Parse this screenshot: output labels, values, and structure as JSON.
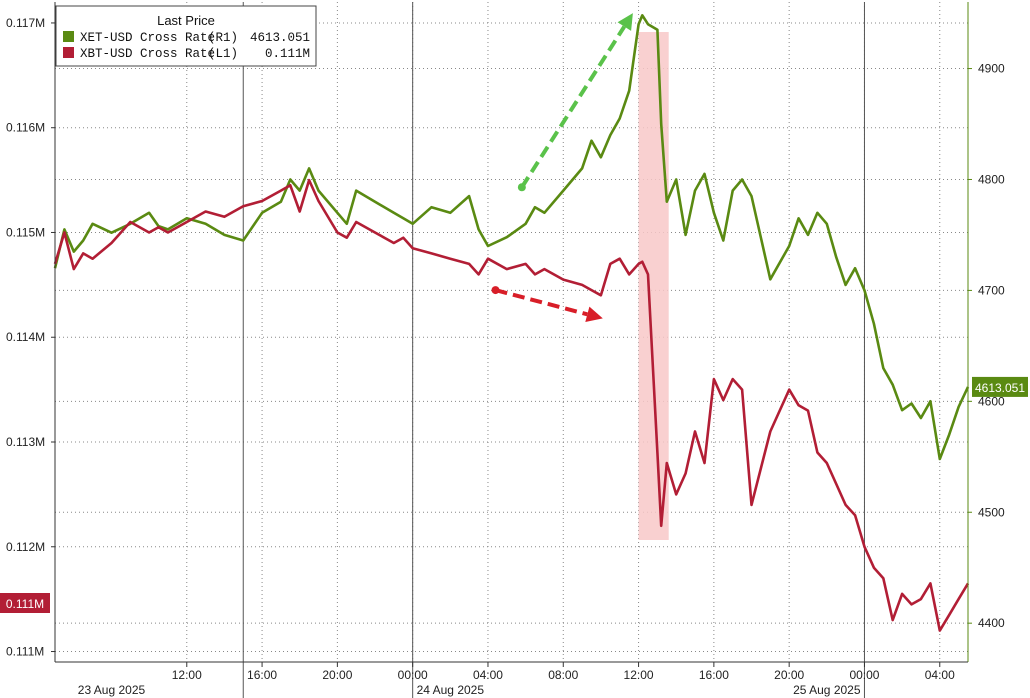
{
  "chart_data": {
    "type": "line",
    "title": "",
    "legend": {
      "title": "Last Price",
      "placement": "top-left",
      "entries": [
        {
          "name": "XET-USD Cross Rate",
          "axis_tag": "(R1)",
          "last": "4613.051",
          "color": "#5a8a12"
        },
        {
          "name": "XBT-USD Cross Rate",
          "axis_tag": "(L1)",
          "last": "0.111M",
          "color": "#b21e35"
        }
      ]
    },
    "x_axis": {
      "ticks": [
        "12:00",
        "16:00",
        "20:00",
        "00:00",
        "04:00",
        "08:00",
        "12:00",
        "16:00",
        "20:00",
        "00:00",
        "04:00"
      ],
      "tick_hours": [
        12,
        16,
        20,
        24,
        28,
        32,
        36,
        40,
        44,
        48,
        52
      ],
      "date_labels": [
        {
          "text": "23 Aug 2025",
          "hour": 8
        },
        {
          "text": "24 Aug 2025",
          "hour": 26
        },
        {
          "text": "25 Aug 2025",
          "hour": 46
        }
      ],
      "day_boundaries_hours": [
        15,
        24,
        48
      ],
      "range_hours": [
        5,
        53.5
      ]
    },
    "left_axis": {
      "ticks": [
        "0.117M",
        "0.116M",
        "0.115M",
        "0.114M",
        "0.113M",
        "0.112M",
        "0.111M"
      ],
      "tick_values": [
        117000,
        116000,
        115000,
        114000,
        113000,
        112000,
        111000
      ],
      "range": [
        110900,
        117200
      ],
      "badge": "0.111M"
    },
    "right_axis": {
      "ticks": [
        "4900",
        "4800",
        "4700",
        "4600",
        "4500",
        "4400"
      ],
      "tick_values": [
        4900,
        4800,
        4700,
        4600,
        4500,
        4400
      ],
      "range": [
        4365,
        4960
      ],
      "badge": "4613.051"
    },
    "grid": true,
    "series": [
      {
        "name": "XET-USD Cross Rate",
        "axis": "right",
        "color": "#5a8a12",
        "x_hours": [
          5,
          5.5,
          6,
          6.5,
          7,
          8,
          9,
          10,
          10.5,
          11,
          12,
          13,
          14,
          15,
          16,
          17,
          17.5,
          18,
          18.5,
          19,
          20,
          20.5,
          21,
          22,
          23,
          23.5,
          24,
          25,
          26,
          27,
          27.5,
          28,
          29,
          30,
          30.5,
          31,
          32,
          33,
          33.5,
          34,
          34.5,
          35,
          35.5,
          36,
          36.2,
          36.5,
          37,
          37.2,
          37.5,
          38,
          38.5,
          39,
          39.5,
          40,
          40.5,
          41,
          41.5,
          42,
          43,
          44,
          44.5,
          45,
          45.5,
          46,
          46.5,
          47,
          47.5,
          48,
          48.5,
          49,
          49.5,
          50,
          50.5,
          51,
          51.5,
          52,
          52.5,
          53,
          53.5
        ],
        "values": [
          4720,
          4755,
          4735,
          4745,
          4760,
          4752,
          4760,
          4770,
          4758,
          4755,
          4765,
          4760,
          4750,
          4745,
          4770,
          4780,
          4800,
          4790,
          4810,
          4790,
          4770,
          4760,
          4790,
          4780,
          4770,
          4765,
          4760,
          4775,
          4770,
          4785,
          4755,
          4740,
          4748,
          4760,
          4775,
          4770,
          4790,
          4810,
          4835,
          4820,
          4840,
          4855,
          4880,
          4940,
          4948,
          4940,
          4935,
          4850,
          4780,
          4800,
          4750,
          4790,
          4805,
          4770,
          4745,
          4790,
          4800,
          4785,
          4710,
          4740,
          4765,
          4750,
          4770,
          4760,
          4730,
          4705,
          4720,
          4700,
          4670,
          4630,
          4615,
          4592,
          4598,
          4585,
          4600,
          4548,
          4570,
          4595,
          4613
        ]
      },
      {
        "name": "XBT-USD Cross Rate",
        "axis": "left",
        "color": "#b21e35",
        "x_hours": [
          5,
          5.5,
          6,
          6.5,
          7,
          8,
          9,
          10,
          10.5,
          11,
          12,
          13,
          14,
          15,
          16,
          17,
          17.5,
          18,
          18.5,
          19,
          20,
          20.5,
          21,
          22,
          23,
          23.5,
          24,
          25,
          26,
          27,
          27.5,
          28,
          29,
          30,
          30.5,
          31,
          32,
          33,
          33.5,
          34,
          34.5,
          35,
          35.5,
          36,
          36.2,
          36.5,
          37,
          37.2,
          37.5,
          38,
          38.5,
          39,
          39.5,
          40,
          40.5,
          41,
          41.5,
          42,
          43,
          44,
          44.5,
          45,
          45.5,
          46,
          46.5,
          47,
          47.5,
          48,
          48.5,
          49,
          49.5,
          50,
          50.5,
          51,
          51.5,
          52,
          52.5,
          53,
          53.5
        ],
        "values": [
          114700,
          115000,
          114650,
          114800,
          114750,
          114900,
          115100,
          115000,
          115050,
          115000,
          115100,
          115200,
          115150,
          115250,
          115300,
          115400,
          115450,
          115200,
          115500,
          115300,
          115000,
          114950,
          115100,
          115000,
          114900,
          114950,
          114850,
          114800,
          114750,
          114700,
          114600,
          114750,
          114650,
          114700,
          114600,
          114650,
          114550,
          114500,
          114450,
          114400,
          114700,
          114750,
          114600,
          114700,
          114720,
          114600,
          112900,
          112200,
          112800,
          112500,
          112700,
          113100,
          112800,
          113600,
          113400,
          113600,
          113500,
          112400,
          113100,
          113500,
          113350,
          113300,
          112900,
          112800,
          112600,
          112400,
          112300,
          112000,
          111800,
          111700,
          111300,
          111550,
          111450,
          111500,
          111650,
          111200,
          111350,
          111500,
          111650
        ]
      }
    ],
    "annotations": [
      {
        "type": "arrow",
        "color": "#5ac24a",
        "style": "dashed",
        "from": {
          "x_hours": 29.8,
          "y_right": 4793
        },
        "to": {
          "x_hours": 35.7,
          "y_right": 4950
        }
      },
      {
        "type": "arrow",
        "color": "#d81e28",
        "style": "dashed",
        "from": {
          "x_hours": 28.4,
          "y_left": 114450
        },
        "to": {
          "x_hours": 34.1,
          "y_left": 114180
        }
      },
      {
        "type": "shaded_region",
        "color": "#f8c8c8",
        "x_hours": [
          36,
          37.6
        ]
      }
    ]
  }
}
